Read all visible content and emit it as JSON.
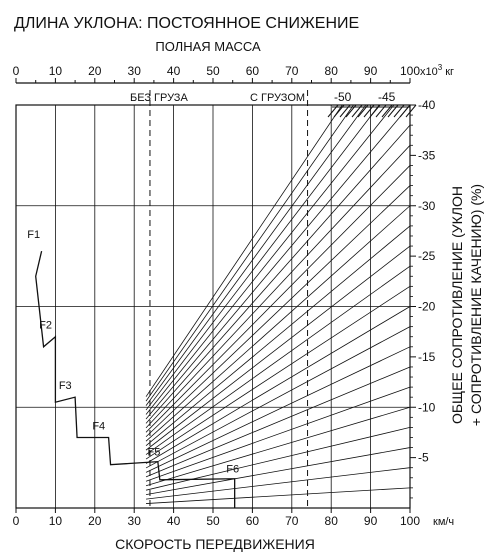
{
  "chart_data": {
    "type": "line",
    "title": "ДЛИНА УКЛОНА: ПОСТОЯННОЕ СНИЖЕНИЕ",
    "top_axis": {
      "label": "ПОЛНАЯ МАССА",
      "unit_base": "x10",
      "unit_exp": "3",
      "unit_suffix": "кг",
      "range": [
        0,
        100
      ],
      "ticks": [
        "0",
        "10",
        "20",
        "30",
        "40",
        "50",
        "60",
        "70",
        "80",
        "90",
        "100"
      ]
    },
    "bottom_axis": {
      "label": "СКОРОСТЬ ПЕРЕДВИЖЕНИЯ",
      "unit": "км/ч",
      "range": [
        0,
        100
      ],
      "ticks": [
        "0",
        "10",
        "20",
        "30",
        "40",
        "50",
        "60",
        "70",
        "80",
        "90",
        "100"
      ]
    },
    "right_axis": {
      "label_line1": "ОБЩЕЕ СОПРОТИВЛЕНИЕ (УКЛОН",
      "label_line2": "+ СОПРОТИВЛЕНИЕ КАЧЕНИЮ) (%)",
      "range": [
        0,
        -40
      ],
      "ticks": [
        "-40",
        "-35",
        "-30",
        "-25",
        "-20",
        "-15",
        "-10",
        "-5"
      ]
    },
    "markers": [
      {
        "label": "БЕЗ ГРУЗА",
        "mass": 34
      },
      {
        "label": "С ГРУЗОМ",
        "mass": 74
      }
    ],
    "top_resistance_labels": [
      "-50",
      "-45"
    ],
    "grade_lines": {
      "resistance_percent": [
        -2,
        -4,
        -6,
        -8,
        -10,
        -12,
        -14,
        -16,
        -18,
        -20,
        -22,
        -24,
        -26,
        -28,
        -30,
        -32,
        -34,
        -36,
        -38,
        -40,
        -42,
        -44,
        -46,
        -48,
        -50
      ]
    },
    "brake_curve": {
      "points": [
        {
          "speed": 6.5,
          "resistance": -25.5
        },
        {
          "speed": 5,
          "resistance": -23
        },
        {
          "speed": 7,
          "resistance": -16
        },
        {
          "speed": 10,
          "resistance": -17
        },
        {
          "speed": 10,
          "resistance": -10.5
        },
        {
          "speed": 15,
          "resistance": -11
        },
        {
          "speed": 15.5,
          "resistance": -7
        },
        {
          "speed": 23.5,
          "resistance": -7
        },
        {
          "speed": 24,
          "resistance": -4.3
        },
        {
          "speed": 36,
          "resistance": -4.6
        },
        {
          "speed": 36.5,
          "resistance": -2.8
        },
        {
          "speed": 55.5,
          "resistance": -2.9
        },
        {
          "speed": 55.5,
          "resistance": 0
        }
      ],
      "gear_labels": [
        {
          "name": "F1",
          "speed": 4.5,
          "resistance": -26.8
        },
        {
          "name": "F2",
          "speed": 7.5,
          "resistance": -17.8
        },
        {
          "name": "F3",
          "speed": 12.5,
          "resistance": -11.8
        },
        {
          "name": "F4",
          "speed": 21,
          "resistance": -7.8
        },
        {
          "name": "F5",
          "speed": 35,
          "resistance": -5.2
        },
        {
          "name": "F6",
          "speed": 55,
          "resistance": -3.5
        }
      ]
    },
    "colors": {
      "ink": "#111111",
      "background": "#ffffff"
    }
  }
}
